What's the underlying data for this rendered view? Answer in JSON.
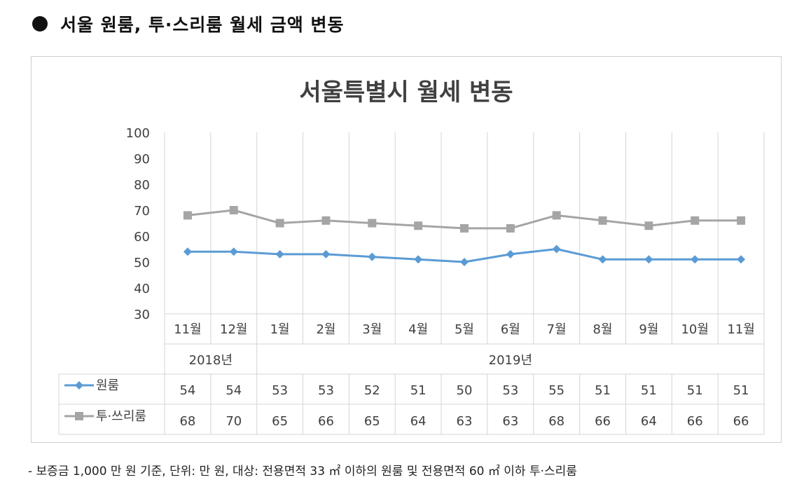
{
  "heading": "서울 원룸, 투·스리룸 월세 금액 변동",
  "footnote": "- 보증금 1,000 만 원 기준, 단위: 만 원, 대상: 전용면적 33 ㎡ 이하의 원룸 및 전용면적 60 ㎡ 이하 투·스리룸",
  "chart_data": {
    "type": "line",
    "title": "서울특별시 월세 변동",
    "categories": [
      "11월",
      "12월",
      "1월",
      "2월",
      "3월",
      "4월",
      "5월",
      "6월",
      "7월",
      "8월",
      "9월",
      "10월",
      "11월"
    ],
    "year_groups": [
      {
        "label": "2018년",
        "span": 2
      },
      {
        "label": "2019년",
        "span": 11
      }
    ],
    "ylim": [
      30,
      100
    ],
    "yticks": [
      30,
      40,
      50,
      60,
      70,
      80,
      90,
      100
    ],
    "grid": "vertical",
    "legend": "data-table",
    "series": [
      {
        "name": "원룸",
        "values": [
          54,
          54,
          53,
          53,
          52,
          51,
          50,
          53,
          55,
          51,
          51,
          51,
          51
        ],
        "color": "#5b9bd5",
        "marker": "diamond"
      },
      {
        "name": "투·쓰리룸",
        "values": [
          68,
          70,
          65,
          66,
          65,
          64,
          63,
          63,
          68,
          66,
          64,
          66,
          66
        ],
        "color": "#a5a5a5",
        "marker": "square"
      }
    ]
  }
}
